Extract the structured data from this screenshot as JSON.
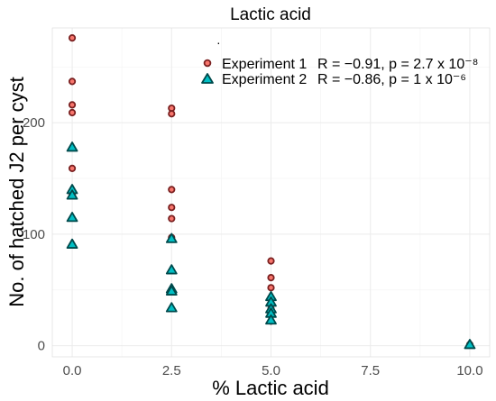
{
  "chart_data": {
    "type": "scatter",
    "title": "Lactic acid",
    "xlabel": "% Lactic acid",
    "ylabel": "No. of hatched J2 per cyst",
    "xlim": [
      -0.5,
      10.5
    ],
    "ylim": [
      -10,
      285
    ],
    "xticks": [
      0,
      2.5,
      5,
      7.5,
      10
    ],
    "xtick_labels": [
      "0.0",
      "2.5",
      "5.0",
      "7.5",
      "10.0"
    ],
    "yticks": [
      0,
      100,
      200
    ],
    "ytick_labels": [
      "0",
      "100",
      "200"
    ],
    "grid": true,
    "legend_position": "top-right",
    "series": [
      {
        "name": "Experiment 1",
        "stat": "R = −0.91, p = 2.7 x 10⁻⁸",
        "marker": "circle",
        "color": "#f8766d",
        "points": [
          [
            0,
            276
          ],
          [
            0,
            237
          ],
          [
            0,
            216
          ],
          [
            0,
            209
          ],
          [
            0,
            159
          ],
          [
            0,
            135
          ],
          [
            2.5,
            213
          ],
          [
            2.5,
            208
          ],
          [
            2.5,
            140
          ],
          [
            2.5,
            124
          ],
          [
            2.5,
            114
          ],
          [
            2.5,
            97
          ],
          [
            2.5,
            50
          ],
          [
            5,
            76
          ],
          [
            5,
            61
          ],
          [
            5,
            52
          ],
          [
            5,
            43
          ],
          [
            5,
            38
          ],
          [
            5,
            33
          ],
          [
            5,
            28
          ],
          [
            5,
            22
          ],
          [
            10,
            1
          ]
        ]
      },
      {
        "name": "Experiment 2",
        "stat": "R = −0.86, p = 1 x 10⁻⁶",
        "marker": "triangle",
        "color": "#00bfc4",
        "points": [
          [
            0,
            178
          ],
          [
            0,
            140
          ],
          [
            0,
            135
          ],
          [
            0,
            115
          ],
          [
            0,
            91
          ],
          [
            2.5,
            96
          ],
          [
            2.5,
            68
          ],
          [
            2.5,
            51
          ],
          [
            2.5,
            49
          ],
          [
            2.5,
            34
          ],
          [
            5,
            44
          ],
          [
            5,
            39
          ],
          [
            5,
            33
          ],
          [
            5,
            29
          ],
          [
            5,
            23
          ],
          [
            10,
            1
          ]
        ]
      }
    ]
  },
  "legend_dot": "·"
}
